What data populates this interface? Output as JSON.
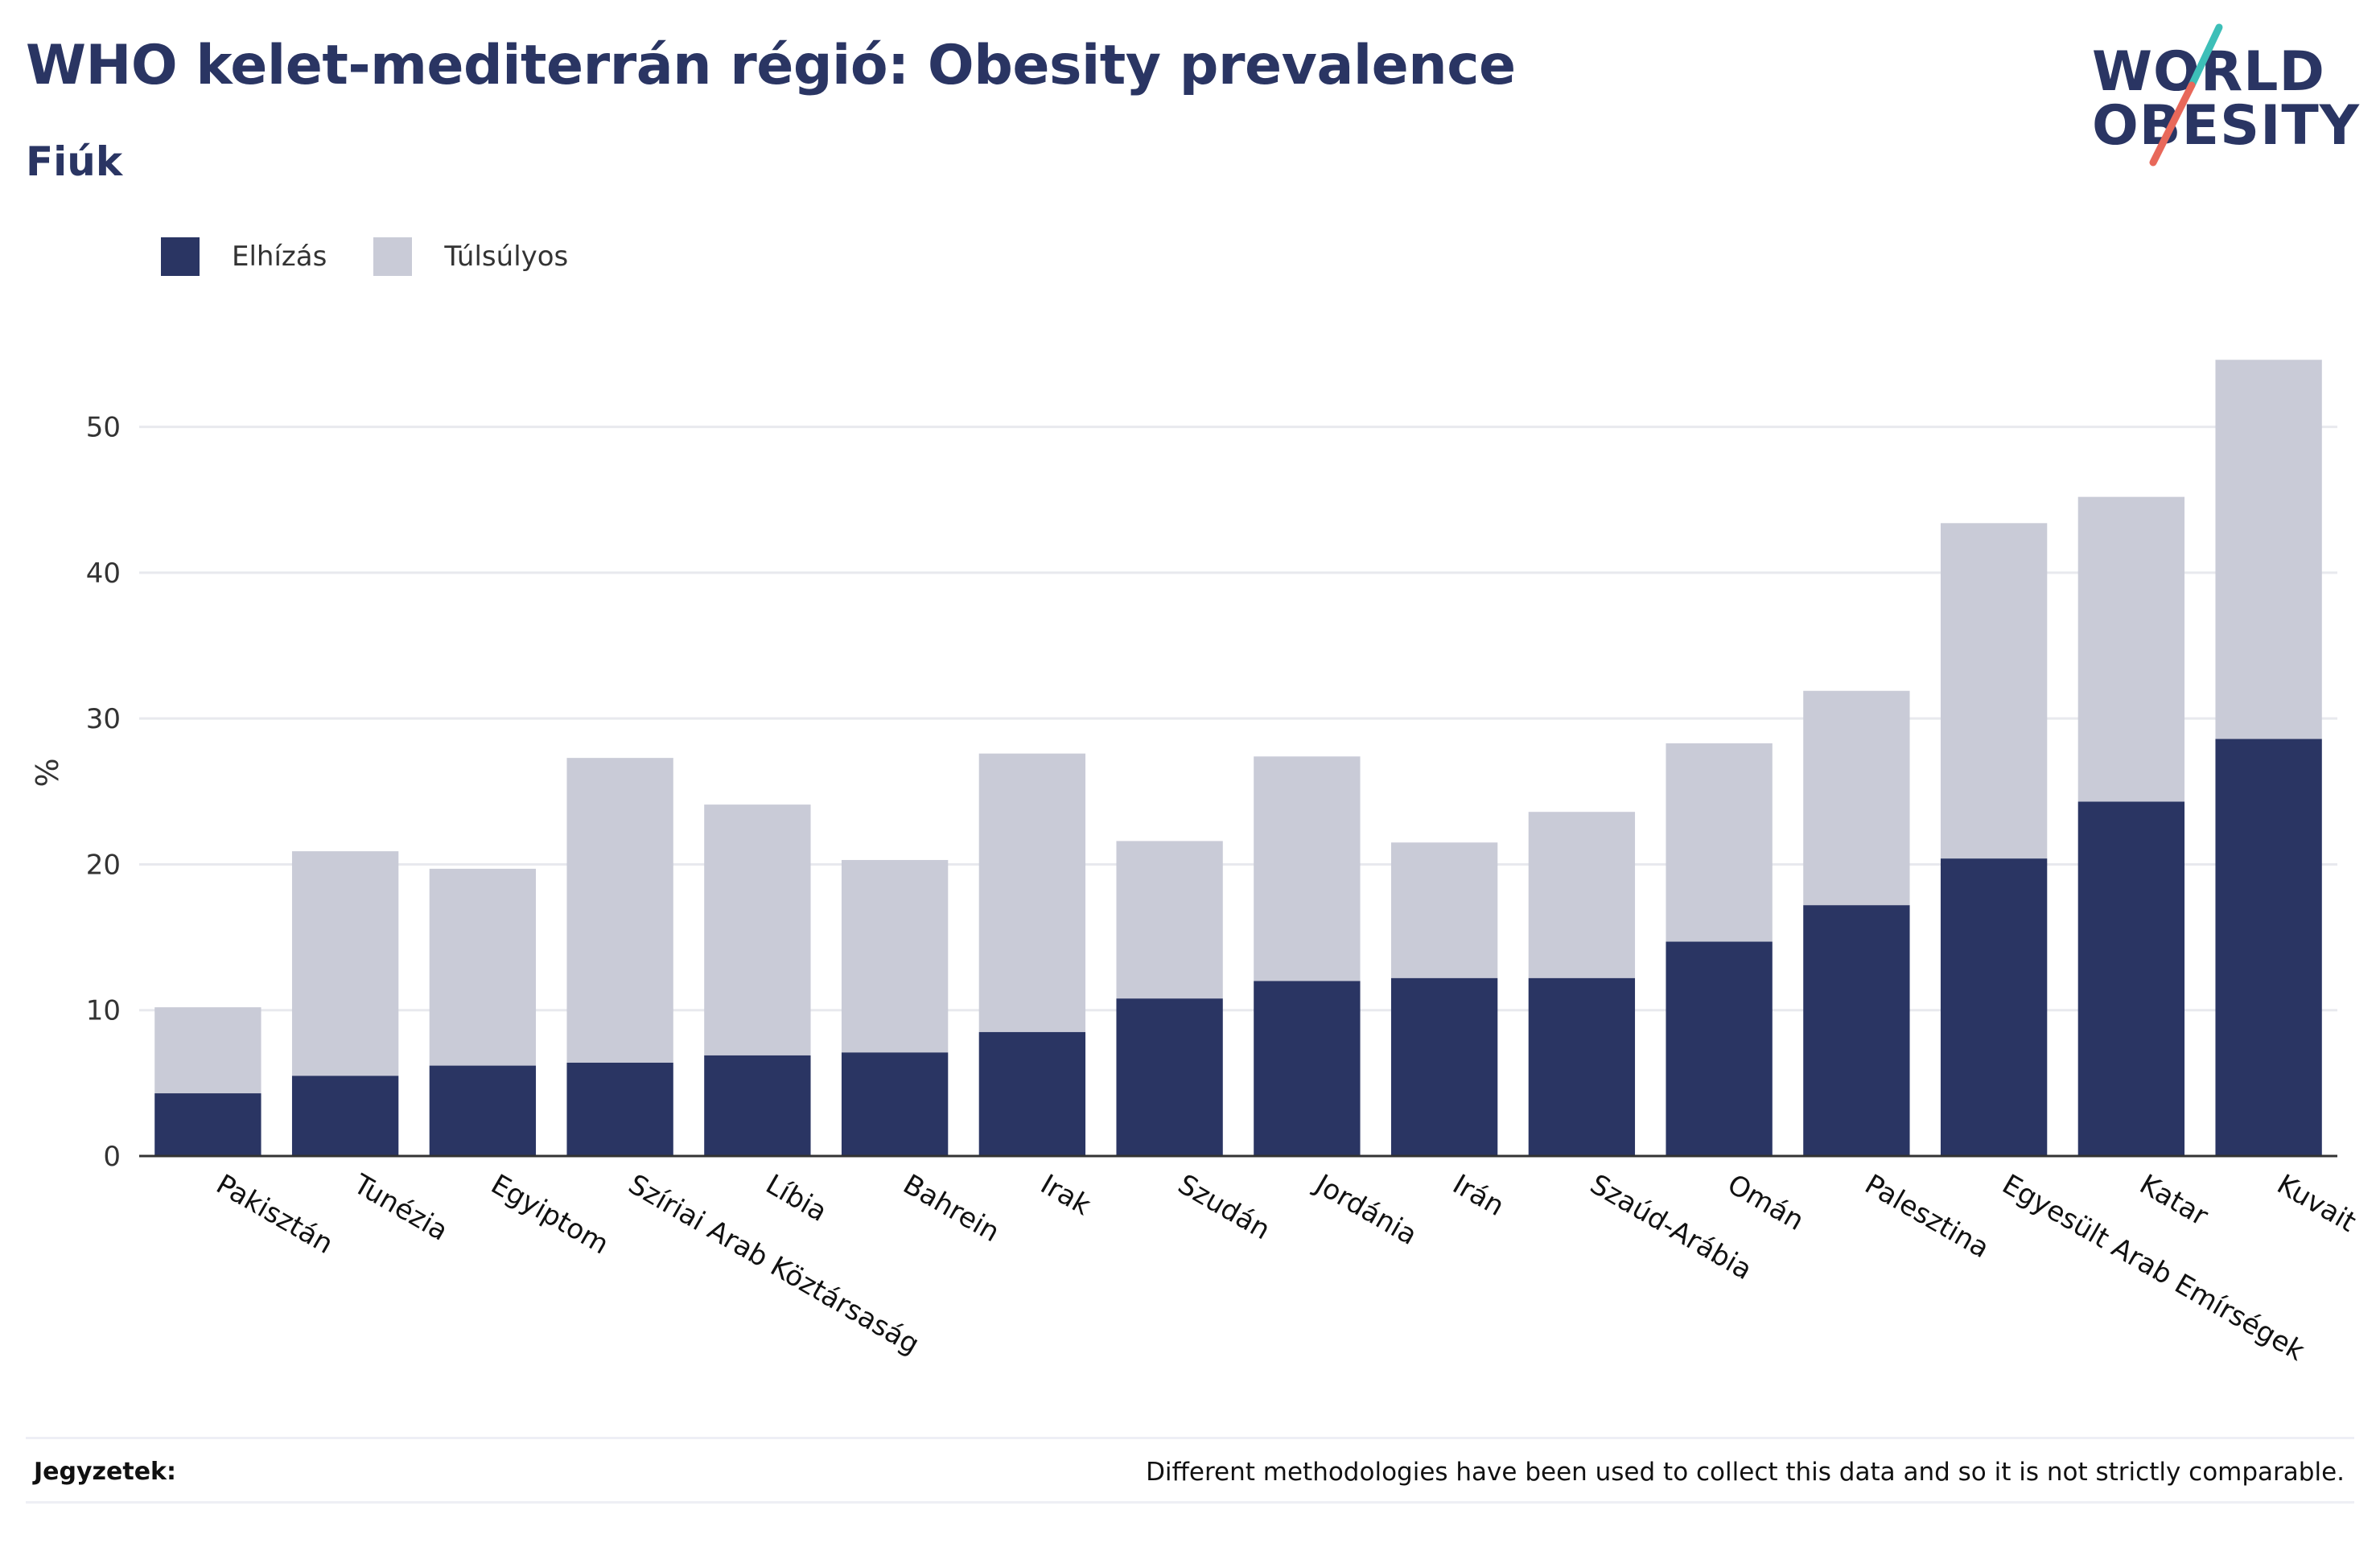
{
  "title": "WHO kelet-mediterrán régió: Obesity prevalence",
  "subtitle": "Fiúk",
  "logo": {
    "line1": "WORLD",
    "line2": "OBESITY"
  },
  "colors": {
    "obesity": "#2a3563",
    "overweight": "#c9cbd7",
    "grid": "#e8e9ee",
    "axis": "#333333",
    "accent_teal": "#3dbfb8",
    "accent_coral": "#e8685a"
  },
  "legend": [
    {
      "label": "Elhízás",
      "color": "#2a3563"
    },
    {
      "label": "Túlsúlyos",
      "color": "#c9cbd7"
    }
  ],
  "notes": {
    "label": "Jegyzetek:",
    "text": "Different methodologies have been used to collect this data and so it is not strictly comparable."
  },
  "chart_data": {
    "type": "bar",
    "stacked": true,
    "ylabel": "%",
    "ylim": [
      0,
      58
    ],
    "yticks": [
      0,
      10,
      20,
      30,
      40,
      50
    ],
    "grid": true,
    "legend_position": "top-left",
    "categories": [
      "Pakisztán",
      "Tunézia",
      "Egyiptom",
      "Szíriai Arab Köztársaság",
      "Líbia",
      "Bahrein",
      "Irak",
      "Szudán",
      "Jordánia",
      "Irán",
      "Szaúd-Arábia",
      "Omán",
      "Palesztina",
      "Egyesült Arab Emírségek",
      "Katar",
      "Kuvait"
    ],
    "series": [
      {
        "name": "Elhízás",
        "values": [
          4.3,
          5.5,
          6.2,
          6.4,
          6.9,
          7.1,
          8.5,
          10.8,
          12.0,
          12.2,
          12.2,
          14.7,
          17.2,
          20.4,
          24.3,
          28.6
        ]
      },
      {
        "name": "Túlsúlyos",
        "values": [
          5.9,
          15.4,
          13.5,
          20.9,
          17.2,
          13.2,
          19.1,
          10.8,
          15.4,
          9.3,
          11.4,
          13.6,
          14.7,
          23.0,
          20.9,
          26.0
        ]
      }
    ]
  }
}
